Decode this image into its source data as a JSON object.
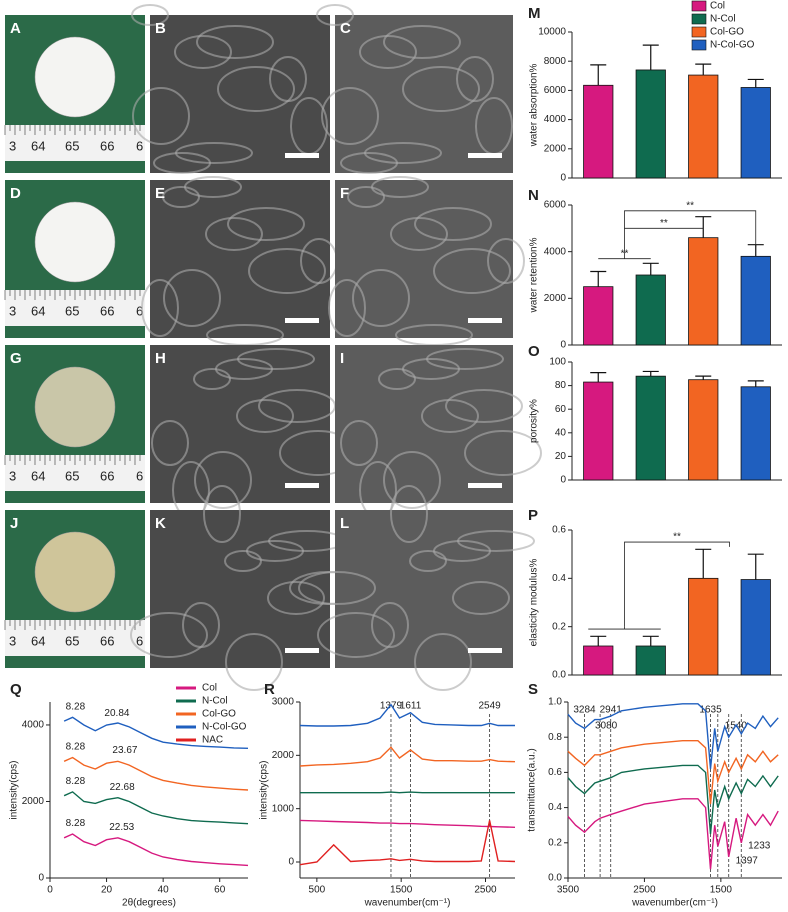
{
  "panels": [
    {
      "label": "A"
    },
    {
      "label": "B"
    },
    {
      "label": "C"
    },
    {
      "label": "D"
    },
    {
      "label": "E"
    },
    {
      "label": "F"
    },
    {
      "label": "G"
    },
    {
      "label": "H"
    },
    {
      "label": "I"
    },
    {
      "label": "J"
    },
    {
      "label": "K"
    },
    {
      "label": "L"
    }
  ],
  "ruler_labels": [
    "3",
    "64",
    "65",
    "66",
    "6"
  ],
  "chart_data": [
    {
      "type": "bar",
      "label": "M",
      "ylabel": "water absorption%",
      "categories": [
        "Col",
        "N-Col",
        "Col-GO",
        "N-Col-GO"
      ],
      "colors": [
        "#d6197f",
        "#0f6b4f",
        "#f26522",
        "#1f5fbf"
      ],
      "values": [
        6350,
        7400,
        7050,
        6200
      ],
      "errors": [
        1400,
        1700,
        750,
        550
      ],
      "ylim": [
        0,
        10000
      ],
      "yticks": [
        0,
        2000,
        4000,
        6000,
        8000,
        10000
      ],
      "legend": true
    },
    {
      "type": "bar",
      "label": "N",
      "ylabel": "water retention%",
      "colors": [
        "#d6197f",
        "#0f6b4f",
        "#f26522",
        "#1f5fbf"
      ],
      "values": [
        2500,
        3000,
        4600,
        3800
      ],
      "errors": [
        650,
        500,
        900,
        500
      ],
      "ylim": [
        0,
        6000
      ],
      "yticks": [
        0,
        2000,
        4000,
        6000
      ],
      "significance": [
        "**",
        "**",
        "**"
      ]
    },
    {
      "type": "bar",
      "label": "O",
      "ylabel": "porosity%",
      "colors": [
        "#d6197f",
        "#0f6b4f",
        "#f26522",
        "#1f5fbf"
      ],
      "values": [
        83,
        88,
        85,
        79
      ],
      "errors": [
        8,
        4,
        3,
        5
      ],
      "ylim": [
        0,
        100
      ],
      "yticks": [
        0,
        20,
        40,
        60,
        80,
        100
      ]
    },
    {
      "type": "bar",
      "label": "P",
      "ylabel": "elasticity modulus%",
      "colors": [
        "#d6197f",
        "#0f6b4f",
        "#f26522",
        "#1f5fbf"
      ],
      "values": [
        0.12,
        0.12,
        0.4,
        0.395
      ],
      "errors": [
        0.04,
        0.04,
        0.12,
        0.105
      ],
      "ylim": [
        0,
        0.6
      ],
      "yticks": [
        {
          "value": 0,
          "label": "0.0"
        },
        0.2,
        0.4,
        0.6
      ],
      "significance": [
        "**"
      ]
    },
    {
      "type": "line",
      "label": "Q",
      "xlabel": "2θ(degrees)",
      "ylabel": "intensity(cps)",
      "x": [
        5,
        8,
        12,
        16,
        20,
        24,
        28,
        32,
        36,
        40,
        45,
        50,
        55,
        60,
        65,
        70
      ],
      "xlim": [
        0,
        70
      ],
      "xticks": [
        0,
        20,
        40,
        60
      ],
      "ylim": [
        0,
        4600
      ],
      "yticks": [
        0,
        2000,
        4000
      ],
      "legend": true,
      "series": [
        {
          "name": "Col",
          "color": "#d6197f",
          "peaks": [
            8.28,
            22.53
          ],
          "values": [
            1050,
            1150,
            950,
            850,
            1000,
            1050,
            950,
            800,
            650,
            550,
            480,
            430,
            400,
            370,
            350,
            330
          ]
        },
        {
          "name": "N-Col",
          "color": "#0f6b4f",
          "peaks": [
            8.28,
            22.68
          ],
          "values": [
            2150,
            2250,
            2000,
            1950,
            2050,
            2100,
            2000,
            1850,
            1700,
            1620,
            1550,
            1500,
            1480,
            1460,
            1440,
            1420
          ]
        },
        {
          "name": "Col-GO",
          "color": "#f26522",
          "peaks": [
            8.28,
            23.67
          ],
          "values": [
            3050,
            3150,
            2950,
            2850,
            3000,
            3050,
            2950,
            2800,
            2650,
            2550,
            2480,
            2420,
            2380,
            2350,
            2320,
            2300
          ]
        },
        {
          "name": "N-Col-GO",
          "color": "#1f5fbf",
          "peaks": [
            8.28,
            20.84
          ],
          "values": [
            4100,
            4200,
            4000,
            3850,
            4000,
            4050,
            3950,
            3800,
            3650,
            3550,
            3500,
            3460,
            3440,
            3420,
            3400,
            3390
          ]
        },
        {
          "name": "NAC",
          "color": "#e02020",
          "values": [
            null,
            null,
            null,
            null,
            null,
            null,
            null,
            null,
            null,
            null,
            null,
            null,
            null,
            null,
            null,
            null
          ]
        }
      ]
    },
    {
      "type": "line",
      "label": "R",
      "xlabel": "wavenumber(cm⁻¹)",
      "ylabel": "intensity(cps)",
      "x": [
        300,
        500,
        700,
        900,
        1100,
        1250,
        1379,
        1480,
        1611,
        1750,
        1900,
        2100,
        2300,
        2450,
        2549,
        2650,
        2850
      ],
      "xlim": [
        300,
        2850
      ],
      "xticks": [
        500,
        1500,
        2500
      ],
      "ylim": [
        -300,
        3000
      ],
      "yticks": [
        0,
        1000,
        2000,
        3000
      ],
      "markers": [
        1379,
        1611,
        2549
      ],
      "series": [
        {
          "color": "#1f5fbf",
          "values": [
            2560,
            2550,
            2550,
            2560,
            2600,
            2700,
            2950,
            2700,
            2800,
            2620,
            2580,
            2570,
            2560,
            2560,
            2600,
            2560,
            2560
          ]
        },
        {
          "color": "#f26522",
          "values": [
            1800,
            1820,
            1830,
            1850,
            1880,
            1950,
            2150,
            1950,
            2100,
            1930,
            1900,
            1900,
            1890,
            1890,
            1920,
            1890,
            1880
          ]
        },
        {
          "color": "#0f6b4f",
          "values": [
            1300,
            1300,
            1300,
            1300,
            1300,
            1300,
            1310,
            1300,
            1310,
            1300,
            1300,
            1300,
            1300,
            1300,
            1300,
            1300,
            1300
          ]
        },
        {
          "color": "#d6197f",
          "values": [
            780,
            770,
            760,
            750,
            740,
            730,
            730,
            720,
            720,
            710,
            700,
            690,
            680,
            670,
            665,
            660,
            650
          ]
        },
        {
          "color": "#e02020",
          "values": [
            -50,
            0,
            320,
            10,
            30,
            40,
            60,
            30,
            50,
            20,
            10,
            10,
            10,
            20,
            780,
            20,
            10
          ]
        }
      ]
    },
    {
      "type": "line",
      "label": "S",
      "xlabel": "wavenumber(cm⁻¹)",
      "ylabel": "transmittance(a.u.)",
      "x": [
        3500,
        3400,
        3284,
        3150,
        3080,
        2941,
        2800,
        2500,
        2000,
        1800,
        1700,
        1635,
        1580,
        1540,
        1450,
        1397,
        1300,
        1233,
        1150,
        1050,
        950,
        850,
        750
      ],
      "xlim": [
        3500,
        700
      ],
      "xticks": [
        3500,
        2500,
        1500
      ],
      "ylim": [
        0,
        1
      ],
      "yticks": [
        {
          "value": 0,
          "label": "0.0"
        },
        0.2,
        0.4,
        0.6,
        0.8,
        {
          "value": 1,
          "label": "1.0"
        }
      ],
      "markers": [
        3284,
        3080,
        2941,
        1635,
        1540,
        1397,
        1233
      ],
      "series": [
        {
          "color": "#1f5fbf",
          "values": [
            0.93,
            0.88,
            0.85,
            0.9,
            0.9,
            0.92,
            0.95,
            0.97,
            0.99,
            0.99,
            0.95,
            0.62,
            0.85,
            0.72,
            0.86,
            0.8,
            0.87,
            0.82,
            0.88,
            0.85,
            0.92,
            0.86,
            0.91
          ]
        },
        {
          "color": "#f26522",
          "values": [
            0.72,
            0.68,
            0.64,
            0.7,
            0.7,
            0.72,
            0.74,
            0.76,
            0.78,
            0.78,
            0.74,
            0.42,
            0.65,
            0.55,
            0.66,
            0.6,
            0.68,
            0.62,
            0.7,
            0.66,
            0.72,
            0.66,
            0.7
          ]
        },
        {
          "color": "#0f6b4f",
          "values": [
            0.57,
            0.52,
            0.48,
            0.54,
            0.55,
            0.57,
            0.6,
            0.62,
            0.64,
            0.64,
            0.6,
            0.25,
            0.5,
            0.4,
            0.52,
            0.45,
            0.54,
            0.48,
            0.56,
            0.52,
            0.58,
            0.52,
            0.58
          ]
        },
        {
          "color": "#d6197f",
          "values": [
            0.35,
            0.3,
            0.26,
            0.32,
            0.34,
            0.36,
            0.38,
            0.42,
            0.45,
            0.45,
            0.4,
            0.05,
            0.3,
            0.18,
            0.32,
            0.12,
            0.34,
            0.2,
            0.36,
            0.3,
            0.36,
            0.3,
            0.38
          ]
        }
      ]
    }
  ]
}
